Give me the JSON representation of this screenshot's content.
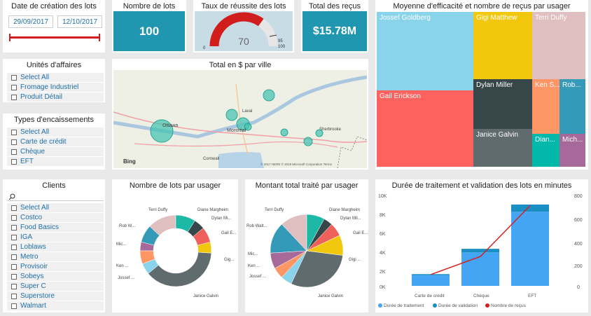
{
  "date_slicer": {
    "title": "Date de création des lots",
    "start": "29/09/2017",
    "end": "12/10/2017"
  },
  "kpi_lots": {
    "title": "Nombre de lots",
    "value": "100"
  },
  "gauge": {
    "title": "Taux de réussite des lots",
    "value": "70",
    "min": "0",
    "max": "100",
    "target": "95",
    "fill_fraction": 0.7
  },
  "kpi_recus": {
    "title": "Total des reçus",
    "value": "$15.78M"
  },
  "treemap": {
    "title": "Moyenne d'efficacité et nombre de reçus par usager",
    "items": [
      "Jossef Goldberg",
      "Gigi Matthew",
      "Terri Duffy",
      "Gail Erickson",
      "Dylan Miller",
      "Janice Galvin",
      "Ken S...",
      "Rob...",
      "Dian...",
      "Mich..."
    ]
  },
  "unites": {
    "title": "Unités d'affaires",
    "items": [
      "Select All",
      "Fromage Industriel",
      "Produit Détail"
    ]
  },
  "map": {
    "title": "Total en $ par ville",
    "cities": [
      "Ottawa",
      "Montréal",
      "Sherbrooke",
      "Cornwall",
      "Laval"
    ],
    "bing": "Bing",
    "copyright": "© 2017 HERE © 2018 Microsoft Corporation  Terms"
  },
  "types": {
    "title": "Types d'encaissements",
    "items": [
      "Select All",
      "Carte de crédit",
      "Chèque",
      "EFT"
    ]
  },
  "clients": {
    "title": "Clients",
    "search_icon": "search-icon",
    "items": [
      "Select All",
      "Costco",
      "Food Basics",
      "IGA",
      "Loblaws",
      "Metro",
      "Provisoir",
      "Sobeys",
      "Super C",
      "Superstore",
      "Walmart"
    ]
  },
  "donut": {
    "title": "Nombre de lots par usager",
    "labels": [
      "Terri Duffy",
      "Diane Margheim",
      "Dylan Mi...",
      "Gail E...",
      "Gig...",
      "Janice Galvin",
      "Jossef ...",
      "Ken ...",
      "Mic...",
      "Rob W..."
    ]
  },
  "pie": {
    "title": "Montant total traité par usager",
    "labels": [
      "Terri Duffy",
      "Diane Margheim",
      "Dylan Mil...",
      "Gail E...",
      "Gigi ...",
      "Janice Galvin",
      "Jossef ...",
      "Ken ...",
      "Mic...",
      "Rob Walt..."
    ]
  },
  "combo": {
    "title": "Durée de traitement et validation des lots en minutes",
    "categories": [
      "Carte de crédit",
      "Chèque",
      "EFT"
    ],
    "left_ticks": [
      "10K",
      "8K",
      "6K",
      "4K",
      "2K",
      "0K"
    ],
    "right_ticks": [
      "800",
      "600",
      "400",
      "200",
      "0"
    ],
    "legend": [
      "Durée de traitement",
      "Durée de validation",
      "Nombre de reçus"
    ]
  },
  "chart_data": [
    {
      "type": "pie",
      "title": "Nombre de lots par usager",
      "categories": [
        "Diane Margheim",
        "Dylan Miller",
        "Gail Erickson",
        "Gigi Matthew",
        "Janice Galvin",
        "Jossef Goldberg",
        "Ken Sanchez",
        "Michael",
        "Rob Walters",
        "Terri Duffy"
      ],
      "values": [
        9,
        5,
        7,
        5,
        38,
        5,
        6,
        4,
        8,
        13
      ],
      "colors": [
        "#1eb8a6",
        "#374649",
        "#f0605a",
        "#f2c80f",
        "#5f6b6d",
        "#8ad4eb",
        "#fe9666",
        "#a66999",
        "#3599b8",
        "#dfbfbf"
      ]
    },
    {
      "type": "pie",
      "title": "Montant total traité par usager",
      "categories": [
        "Diane Margheim",
        "Dylan Miller",
        "Gail Erickson",
        "Gigi Matthew",
        "Janice Galvin",
        "Jossef Goldberg",
        "Ken Sanchez",
        "Michael",
        "Rob Walters",
        "Terri Duffy"
      ],
      "values": [
        8,
        4,
        6,
        9,
        30,
        5,
        5,
        7,
        14,
        12
      ],
      "colors": [
        "#1eb8a6",
        "#374649",
        "#f0605a",
        "#f2c80f",
        "#5f6b6d",
        "#8ad4eb",
        "#fe9666",
        "#a66999",
        "#3599b8",
        "#dfbfbf"
      ]
    },
    {
      "type": "bar",
      "title": "Durée de traitement et validation des lots en minutes",
      "categories": [
        "Carte de crédit",
        "Chèque",
        "EFT"
      ],
      "series": [
        {
          "name": "Durée de traitement",
          "values": [
            1200,
            3700,
            8200
          ]
        },
        {
          "name": "Durée de validation",
          "values": [
            100,
            400,
            800
          ]
        },
        {
          "name": "Nombre de reçus",
          "values": [
            100,
            260,
            710
          ],
          "axis": "right",
          "kind": "line"
        }
      ],
      "ylim": [
        0,
        10000
      ],
      "ylim_right": [
        0,
        800
      ],
      "colors": [
        "#45a5f5",
        "#1a8fc4",
        "#d62020"
      ]
    }
  ]
}
